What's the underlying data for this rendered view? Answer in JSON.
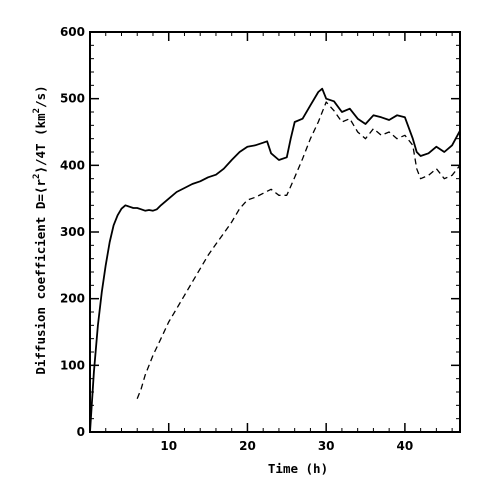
{
  "chart_data": {
    "type": "line",
    "xlabel": "Time (h)",
    "ylabel_parts": {
      "prefix": "Diffusion coefficient D=⟨r",
      "sup": "2",
      "middle": "⟩/4T  (km",
      "sup2": "2",
      "suffix": "/s)"
    },
    "xlim": [
      0,
      47
    ],
    "ylim": [
      0,
      600
    ],
    "x_ticks": [
      10,
      20,
      30,
      40
    ],
    "y_ticks": [
      0,
      100,
      200,
      300,
      400,
      500,
      600
    ],
    "grid": false,
    "legend": "none",
    "series": [
      {
        "style": "solid",
        "x": [
          0,
          0.5,
          1,
          1.5,
          2,
          2.5,
          3,
          3.5,
          4,
          4.5,
          5,
          5.5,
          6,
          6.5,
          7,
          7.5,
          8,
          8.5,
          9,
          10,
          11,
          12,
          13,
          14,
          15,
          16,
          17,
          18,
          19,
          20,
          21,
          22,
          22.5,
          23,
          24,
          25,
          25.5,
          26,
          27,
          28,
          29,
          29.5,
          30,
          31,
          32,
          33,
          34,
          35,
          36,
          37,
          38,
          39,
          40,
          41,
          41.5,
          42,
          43,
          44,
          45,
          46,
          47
        ],
        "values": [
          0,
          90,
          160,
          210,
          250,
          285,
          310,
          325,
          335,
          340,
          338,
          336,
          336,
          334,
          332,
          333,
          332,
          334,
          340,
          350,
          360,
          366,
          372,
          376,
          382,
          386,
          395,
          408,
          420,
          428,
          430,
          434,
          436,
          418,
          408,
          412,
          440,
          465,
          470,
          490,
          510,
          515,
          500,
          496,
          480,
          485,
          470,
          462,
          475,
          472,
          468,
          475,
          472,
          440,
          420,
          414,
          418,
          428,
          420,
          430,
          452
        ]
      },
      {
        "style": "dashed",
        "x": [
          6,
          6.5,
          7,
          8,
          9,
          10,
          11,
          12,
          13,
          14,
          15,
          16,
          17,
          18,
          19,
          20,
          21,
          22,
          23,
          24,
          25,
          26,
          27,
          28,
          29,
          30,
          31,
          32,
          33,
          34,
          35,
          36,
          37,
          38,
          39,
          40,
          41,
          41.5,
          42,
          43,
          44,
          45,
          46,
          47
        ],
        "values": [
          50,
          65,
          85,
          115,
          140,
          165,
          185,
          205,
          225,
          245,
          265,
          282,
          298,
          315,
          335,
          348,
          352,
          358,
          364,
          355,
          355,
          382,
          410,
          440,
          465,
          495,
          482,
          465,
          470,
          450,
          440,
          455,
          445,
          450,
          440,
          445,
          430,
          395,
          380,
          385,
          395,
          380,
          385,
          400
        ]
      }
    ]
  }
}
